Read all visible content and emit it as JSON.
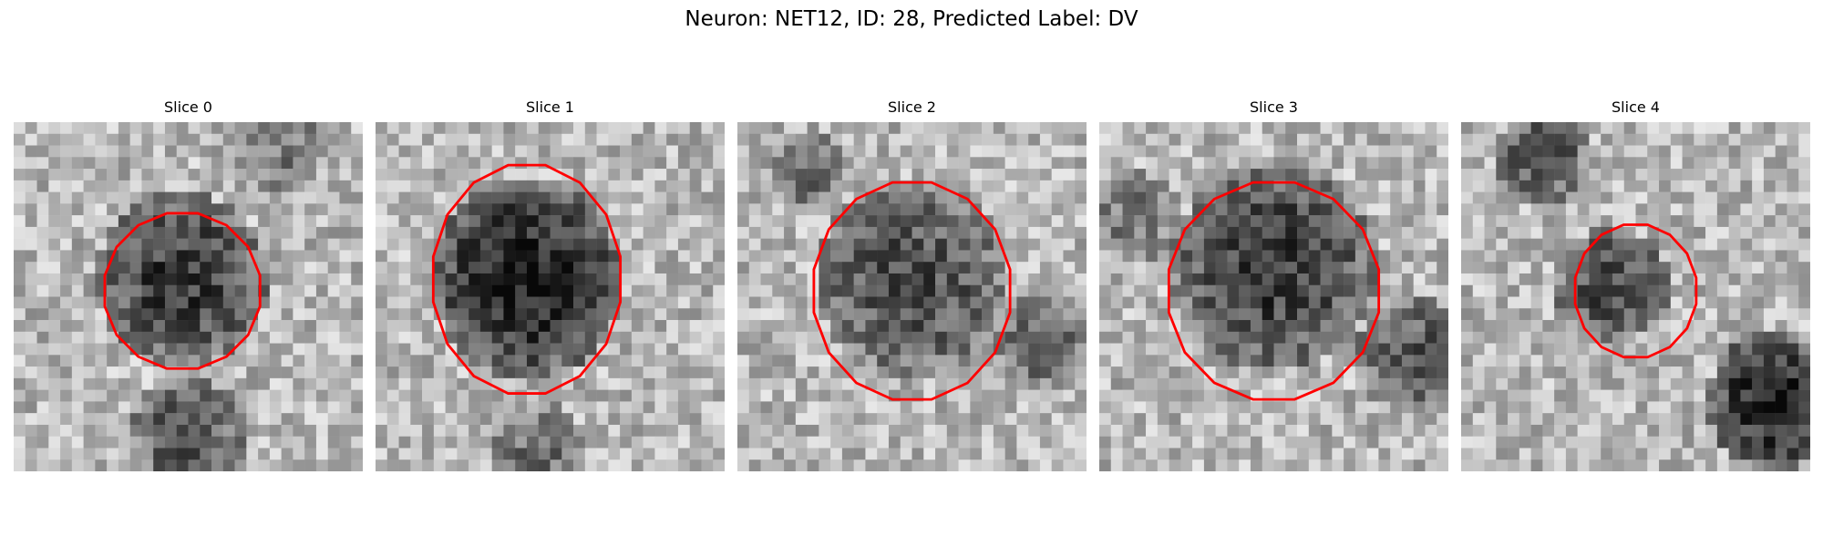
{
  "figure": {
    "title": "Neuron: NET12, ID: 28, Predicted Label: DV"
  },
  "style": {
    "contour_color": "#ff0000",
    "colormap": "gray"
  },
  "slices": [
    {
      "title": "Slice 0"
    },
    {
      "title": "Slice 1"
    },
    {
      "title": "Slice 2"
    },
    {
      "title": "Slice 3"
    },
    {
      "title": "Slice 4"
    }
  ]
}
